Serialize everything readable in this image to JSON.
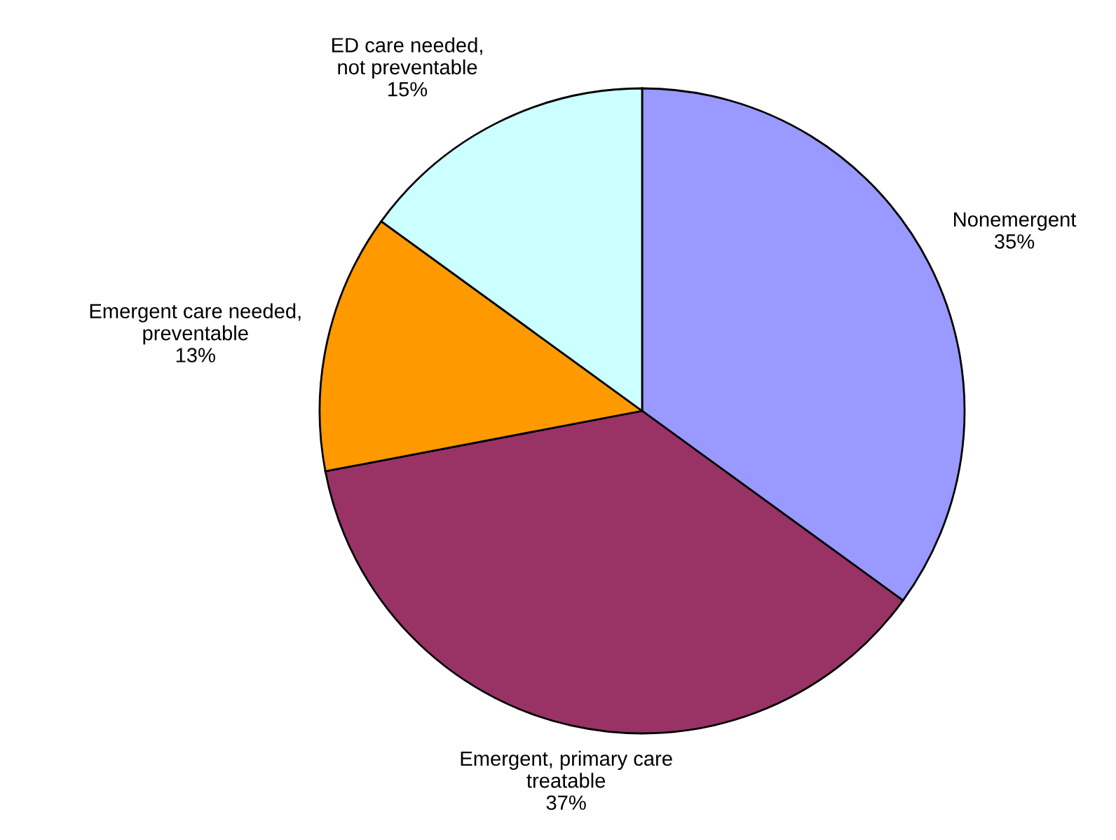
{
  "chart_data": {
    "type": "pie",
    "categories": [
      "Nonemergent",
      "Emergent, primary care\ntreatable",
      "Emergent care needed,\npreventable",
      "ED care needed,\nnot preventable"
    ],
    "values": [
      35,
      37,
      13,
      15
    ],
    "value_labels": [
      "35%",
      "37%",
      "13%",
      "15%"
    ],
    "colors": [
      "#9999ff",
      "#993366",
      "#ff9900",
      "#ccffff"
    ]
  }
}
